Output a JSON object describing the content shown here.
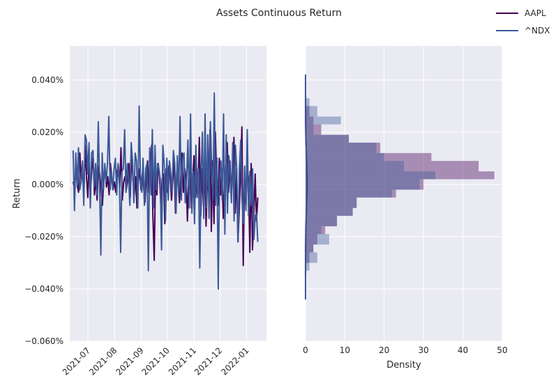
{
  "chart_data": {
    "title": "Assets Continuous Return",
    "legend": {
      "placement": "top-right",
      "entries": [
        {
          "name": "AAPL",
          "color": "#440154"
        },
        {
          "name": "^NDX",
          "color": "#3b5998"
        }
      ]
    },
    "colors": {
      "background": "#eaeaf2",
      "grid": "#ffffff",
      "aapl": "#440154",
      "ndx": "#3b5998"
    },
    "grid": true,
    "panels": [
      {
        "type": "line",
        "ylabel": "Return",
        "xlabel": "",
        "x_range": [
          "2021-06-10",
          "2022-01-24"
        ],
        "y_range": [
          -0.0006,
          0.00053
        ],
        "x_ticks": [
          {
            "date": "2021-07-01",
            "label": "2021-07"
          },
          {
            "date": "2021-08-01",
            "label": "2021-08"
          },
          {
            "date": "2021-09-01",
            "label": "2021-09"
          },
          {
            "date": "2021-10-01",
            "label": "2021-10"
          },
          {
            "date": "2021-11-01",
            "label": "2021-11"
          },
          {
            "date": "2021-12-01",
            "label": "2021-12"
          },
          {
            "date": "2022-01-01",
            "label": "2022-01"
          }
        ],
        "y_ticks": [
          {
            "value": 0.0004,
            "label": "0.040%"
          },
          {
            "value": 0.0002,
            "label": "0.020%"
          },
          {
            "value": 0.0,
            "label": "0.000%"
          },
          {
            "value": -0.0002,
            "label": "−0.020%"
          },
          {
            "value": -0.0004,
            "label": "−0.040%"
          },
          {
            "value": -0.0006,
            "label": "−0.060%"
          }
        ],
        "x_start": "2021-06-14",
        "x_end": "2022-01-14",
        "series": [
          {
            "name": "AAPL",
            "values": [
              1e-05,
              -2e-05,
              8e-05,
              0.0,
              -3e-05,
              0.00012,
              1e-05,
              6e-05,
              -4e-05,
              0.00015,
              3e-05,
              -5e-05,
              9e-05,
              -2e-05,
              5e-05,
              0.00011,
              -4e-05,
              2e-05,
              -6e-05,
              7e-05,
              4e-05,
              -2e-05,
              -8e-05,
              2e-05,
              6e-05,
              -1e-05,
              3e-05,
              -4e-05,
              8e-05,
              2e-05,
              -2e-05,
              1e-05,
              -3e-05,
              5e-05,
              7e-05,
              -1e-05,
              0.00014,
              -6e-05,
              1e-05,
              3e-05,
              -2e-05,
              2e-05,
              8e-05,
              -5e-05,
              0.00012,
              2e-05,
              -4e-05,
              3e-05,
              -9e-05,
              1e-05,
              6e-05,
              -2e-05,
              4e-05,
              -1e-05,
              -7e-05,
              3e-05,
              9e-05,
              -3e-05,
              3e-05,
              0.00015,
              -0.00012,
              -0.00029,
              5e-05,
              -4e-05,
              8e-05,
              3e-05,
              -8e-05,
              2e-05,
              4e-05,
              -0.00015,
              6e-05,
              -3e-05,
              7e-05,
              4e-05,
              -6e-05,
              2e-05,
              9e-05,
              -0.00011,
              5e-05,
              1e-05,
              -7e-05,
              3e-05,
              0.00012,
              -3e-05,
              6e-05,
              2e-05,
              -0.00014,
              4e-05,
              8e-05,
              -9e-05,
              2e-05,
              0.00011,
              -5e-05,
              6e-05,
              -2e-05,
              0.00018,
              -0.00012,
              6e-05,
              -8e-05,
              0.00012,
              -0.00016,
              2e-05,
              -3e-05,
              0.00021,
              -0.00018,
              9e-05,
              -0.00015,
              0.0002,
              2e-05,
              -8e-05,
              0.0001,
              -4e-05,
              6e-05,
              -0.00013,
              2e-05,
              7e-05,
              0.00016,
              -3e-05,
              9e-05,
              -4e-05,
              4e-05,
              0.00018,
              -0.00011,
              6e-05,
              -0.00022,
              -0.0001,
              4e-05,
              0.00022,
              -0.00031,
              3e-05,
              -9e-05,
              7e-05,
              2e-05,
              -0.00026,
              8e-05,
              -0.00025,
              -0.00011,
              4e-05,
              -0.00014,
              -5e-05
            ]
          },
          {
            "name": "^NDX",
            "values": [
              0.00013,
              -0.0001,
              0.00012,
              -1e-05,
              0.00014,
              -2e-05,
              1e-05,
              9e-05,
              -8e-05,
              0.00019,
              0.00017,
              4e-05,
              0.00016,
              -9e-05,
              0.00012,
              0.00013,
              -1e-05,
              8e-05,
              -4e-05,
              0.00024,
              0.0,
              -0.00027,
              0.00012,
              -2e-05,
              8e-05,
              1e-05,
              8e-05,
              0.00026,
              -2e-05,
              5e-05,
              -2e-05,
              6e-05,
              0.0001,
              -4e-05,
              8e-05,
              3e-05,
              -0.00026,
              5e-05,
              6e-05,
              0.00021,
              -3e-05,
              8e-05,
              2e-05,
              -8e-05,
              0.00016,
              9e-05,
              -7e-05,
              0.00012,
              9e-05,
              -9e-05,
              0.0003,
              2e-05,
              -3e-05,
              0.0001,
              -8e-05,
              6e-05,
              8e-05,
              -0.00033,
              0.00014,
              -4e-05,
              0.00021,
              -9e-05,
              0.00015,
              -2e-05,
              8e-05,
              6e-05,
              2e-05,
              -0.00025,
              0.00015,
              8e-05,
              -0.00014,
              0.0001,
              -6e-05,
              9e-05,
              4e-05,
              -3e-05,
              0.00013,
              8e-05,
              -0.00011,
              0.00011,
              -4e-05,
              0.00026,
              -6e-05,
              0.0001,
              0.00012,
              -7e-05,
              2e-05,
              0.00017,
              -9e-05,
              0.00027,
              -0.00011,
              5e-05,
              -0.00015,
              0.00015,
              -5e-05,
              6e-05,
              -0.00032,
              3e-05,
              0.0002,
              -0.00013,
              0.00027,
              -9e-05,
              0.00019,
              -0.00013,
              0.00024,
              7e-05,
              -6e-05,
              0.00035,
              -8e-05,
              0.0001,
              -0.0004,
              3e-05,
              9e-05,
              -6e-05,
              0.00027,
              -0.00019,
              0.00019,
              -0.00011,
              0.00011,
              4e-05,
              -7e-05,
              0.00016,
              -0.00014,
              0.00015,
              6e-05,
              -0.00022,
              6e-05,
              0.00017,
              -5e-05,
              -0.00015,
              7e-05,
              -0.0001,
              0.00021,
              -0.00012,
              5e-05,
              -8e-05,
              6e-05,
              -0.00021,
              -0.00012,
              -0.00011,
              -0.00022
            ]
          }
        ]
      },
      {
        "type": "histogram+kde",
        "xlabel": "Density",
        "ylabel": "",
        "x_range": [
          0,
          50
        ],
        "x_ticks": [
          0,
          10,
          20,
          30,
          40,
          50
        ],
        "bin_edges": [
          -0.00033,
          -0.0003,
          -0.00026,
          -0.00023,
          -0.00019,
          -0.00016,
          -0.00012,
          -9e-05,
          -5e-05,
          -2e-05,
          2e-05,
          5e-05,
          9e-05,
          0.00012,
          0.00016,
          0.00019,
          0.00023,
          0.00026,
          0.0003,
          0.00033
        ],
        "hist": [
          {
            "name": "AAPL",
            "density": [
              0,
              1,
              2,
              3,
              5,
              8,
              12,
              13,
              23,
              30,
              48,
              44,
              32,
              19,
              11,
              4,
              2,
              1,
              0
            ]
          },
          {
            "name": "^NDX",
            "density": [
              1,
              3,
              2,
              6,
              4,
              8,
              12,
              13,
              22,
              29,
              33,
              25,
              20,
              18,
              11,
              2,
              9,
              3,
              1
            ]
          }
        ],
        "kde": [
          {
            "name": "AAPL",
            "mean": 5e-06,
            "sd": 0.0001
          },
          {
            "name": "^NDX",
            "mean": 5e-07,
            "sd": 0.00013
          }
        ],
        "kde_y_range": [
          -0.00044,
          0.00042
        ]
      }
    ]
  }
}
